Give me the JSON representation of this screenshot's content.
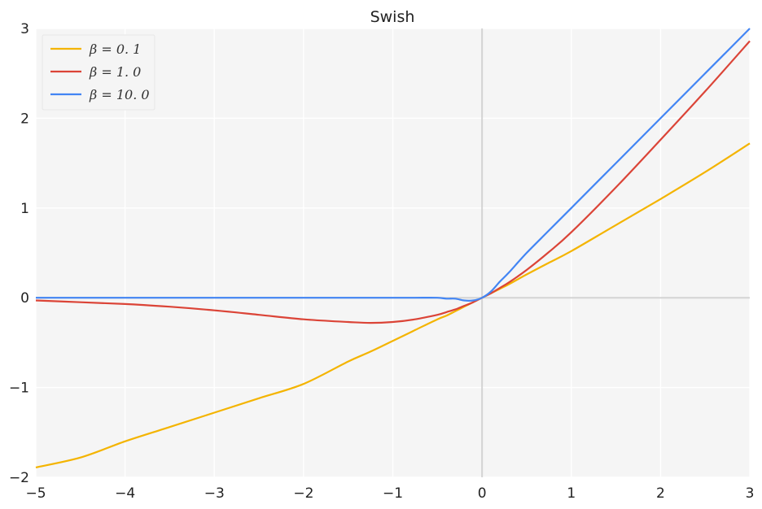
{
  "chart_data": {
    "type": "line",
    "title": "Swish",
    "xlabel": "",
    "ylabel": "",
    "xlim": [
      -5,
      3
    ],
    "ylim": [
      -2,
      3
    ],
    "xticks": [
      -5,
      -4,
      -3,
      -2,
      -1,
      0,
      1,
      2,
      3
    ],
    "yticks": [
      -2,
      -1,
      0,
      1,
      2,
      3
    ],
    "xtick_labels": [
      "−5",
      "−4",
      "−3",
      "−2",
      "−1",
      "0",
      "1",
      "2",
      "3"
    ],
    "ytick_labels": [
      "−2",
      "−1",
      "0",
      "1",
      "2",
      "3"
    ],
    "grid": true,
    "legend_position": "top-left",
    "x": [
      -5,
      -4.5,
      -4,
      -3.5,
      -3,
      -2.5,
      -2,
      -1.5,
      -1.25,
      -1,
      -0.75,
      -0.5,
      -0.4,
      -0.3,
      -0.2,
      -0.1,
      0,
      0.1,
      0.2,
      0.3,
      0.5,
      0.75,
      1,
      1.5,
      2,
      2.5,
      3
    ],
    "series": [
      {
        "name": "β = 0. 1",
        "color": "#f4b400",
        "values": [
          -1.89,
          -1.78,
          -1.6,
          -1.44,
          -1.28,
          -1.12,
          -0.96,
          -0.71,
          -0.6,
          -0.48,
          -0.36,
          -0.24,
          -0.2,
          -0.15,
          -0.1,
          -0.05,
          0,
          0.05,
          0.1,
          0.15,
          0.26,
          0.39,
          0.52,
          0.81,
          1.1,
          1.4,
          1.72
        ]
      },
      {
        "name": "β = 1. 0",
        "color": "#db4437",
        "values": [
          -0.03,
          -0.05,
          -0.07,
          -0.1,
          -0.14,
          -0.19,
          -0.24,
          -0.27,
          -0.28,
          -0.27,
          -0.24,
          -0.19,
          -0.16,
          -0.13,
          -0.09,
          -0.05,
          0,
          0.05,
          0.11,
          0.17,
          0.31,
          0.51,
          0.73,
          1.23,
          1.76,
          2.3,
          2.86
        ]
      },
      {
        "name": "β = 10. 0",
        "color": "#4285f4",
        "values": [
          0,
          0,
          0,
          0,
          0,
          0,
          0,
          0,
          0,
          0,
          0,
          0,
          -0.01,
          -0.01,
          -0.03,
          -0.03,
          0,
          0.07,
          0.18,
          0.28,
          0.5,
          0.75,
          1,
          1.5,
          2,
          2.5,
          3
        ]
      }
    ]
  }
}
